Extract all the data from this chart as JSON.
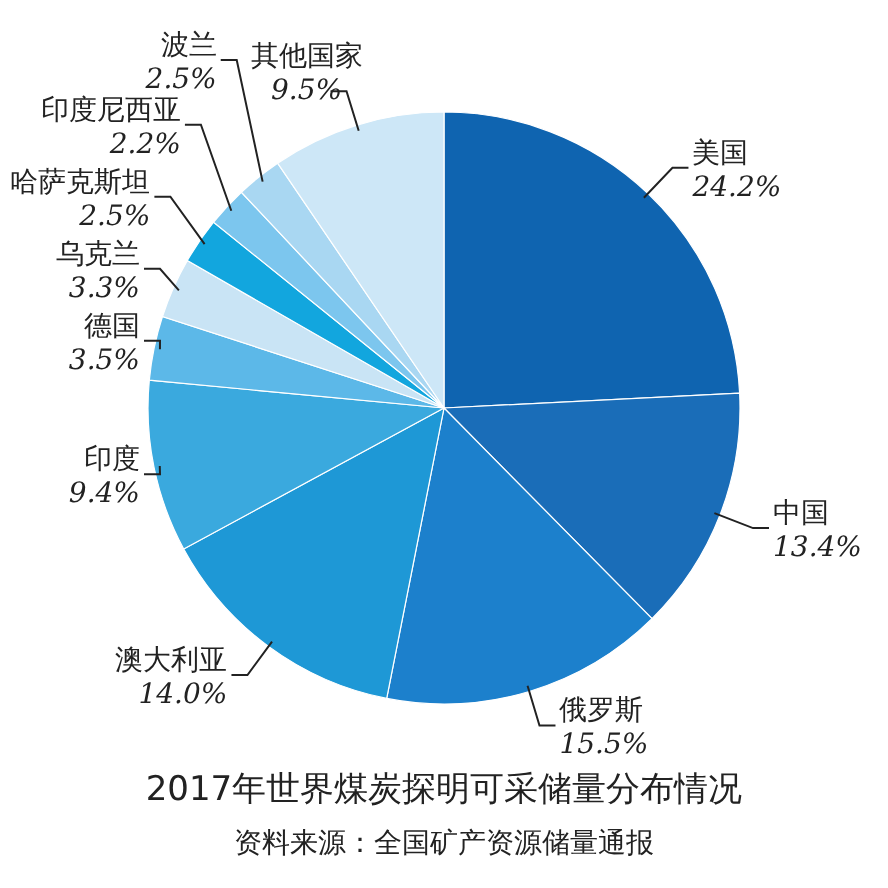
{
  "chart_data": {
    "type": "pie",
    "title": "2017年世界煤炭探明可采储量分布情况",
    "categories": [
      "美国",
      "中国",
      "俄罗斯",
      "澳大利亚",
      "印度",
      "德国",
      "乌克兰",
      "哈萨克斯坦",
      "印度尼西亚",
      "波兰",
      "其他国家"
    ],
    "values": [
      24.2,
      13.4,
      15.5,
      14.0,
      9.4,
      3.5,
      3.3,
      2.5,
      2.2,
      2.5,
      9.5
    ],
    "colors": [
      "#0f64b0",
      "#1a6db8",
      "#1c80cc",
      "#1e98d6",
      "#3aa9de",
      "#5cb8e8",
      "#c9e4f5",
      "#12a6de",
      "#7cc6ee",
      "#a9d7f2",
      "#cde7f7"
    ],
    "value_labels": [
      "24.2%",
      "13.4%",
      "15.5%",
      "14.0%",
      "9.4%",
      "3.5%",
      "3.3%",
      "2.5%",
      "2.2%",
      "2.5%",
      "9.5%"
    ],
    "annotations": [
      "资料来源：全国矿产资源储量通报"
    ]
  }
}
